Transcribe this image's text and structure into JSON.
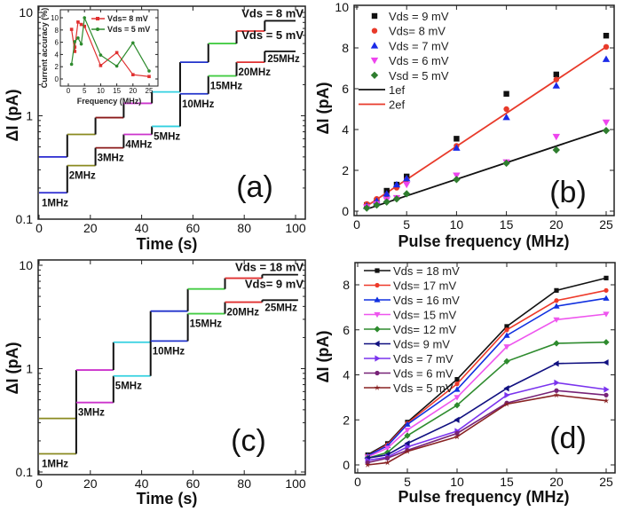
{
  "chart_data": [
    {
      "id": "a",
      "type": "line",
      "panel_label": "(a)",
      "xlabel": "Time (s)",
      "ylabel": "ΔI (pA)",
      "xlim": [
        0,
        100
      ],
      "ylim": [
        0.1,
        10
      ],
      "yscale": "log",
      "xticks": [
        "0",
        "20",
        "40",
        "60",
        "80",
        "100"
      ],
      "yticks": [
        "0.1",
        "1",
        "10"
      ],
      "segment_times": [
        0,
        11,
        22,
        33,
        44,
        55,
        66,
        77,
        88,
        100
      ],
      "step_labels": [
        "1MHz",
        "2MHz",
        "3MHz",
        "4MHz",
        "5MHz",
        "10MHz",
        "15MHz",
        "20MHz",
        "25MHz"
      ],
      "step_colors": [
        "#2a2ad0",
        "#8a8a20",
        "#8b1a1a",
        "#cc33cc",
        "#33d0e0",
        "#2233cc",
        "#44cc44",
        "#e03030",
        "#111111"
      ],
      "series": [
        {
          "name": "Vds = 8 mV",
          "values": [
            0.4,
            0.66,
            0.96,
            1.32,
            1.7,
            3.3,
            5.0,
            6.6,
            8.3
          ]
        },
        {
          "name": "Vds = 5 mV",
          "values": [
            0.18,
            0.33,
            0.49,
            0.66,
            0.79,
            1.63,
            2.43,
            3.3,
            4.2
          ]
        }
      ],
      "inset": {
        "type": "line",
        "xlabel": "Frequency (MHz)",
        "ylabel": "Current accuracy (%)",
        "xlim": [
          0,
          25
        ],
        "ylim": [
          0,
          10
        ],
        "xticks": [
          "0",
          "5",
          "10",
          "15",
          "20",
          "25"
        ],
        "yticks": [
          "0",
          "2",
          "4",
          "6",
          "8",
          "10"
        ],
        "series": [
          {
            "name": "Vds= 8 mV",
            "color": "#e03030",
            "x": [
              1,
              2,
              2,
              3,
              4,
              5,
              10,
              15,
              20,
              25
            ],
            "values": [
              8.1,
              4.5,
              5.2,
              9.3,
              8.9,
              8.6,
              2.2,
              4.3,
              0.7,
              0.4
            ]
          },
          {
            "name": "Vds = 5 mV",
            "color": "#2e8b2e",
            "x": [
              1,
              2,
              3,
              4,
              5,
              10,
              15,
              20,
              25
            ],
            "values": [
              2.4,
              6.1,
              6.7,
              5.7,
              10.0,
              3.9,
              2.1,
              5.9,
              1.3
            ]
          }
        ]
      }
    },
    {
      "id": "b",
      "type": "scatter",
      "panel_label": "(b)",
      "xlabel": "Pulse frequency (MHz)",
      "ylabel": "ΔI (pA)",
      "xlim": [
        0,
        25
      ],
      "ylim": [
        0,
        10
      ],
      "xticks": [
        "0",
        "5",
        "10",
        "15",
        "20",
        "25"
      ],
      "yticks": [
        "0",
        "2",
        "4",
        "6",
        "8",
        "10"
      ],
      "legend": "top-left",
      "x": [
        1,
        2,
        3,
        4,
        5,
        10,
        15,
        20,
        25
      ],
      "series": [
        {
          "name": "Vds = 9 mV",
          "color": "#111111",
          "marker": "square",
          "values": [
            0.3,
            0.5,
            1.0,
            1.3,
            1.7,
            3.55,
            5.75,
            6.7,
            8.6
          ]
        },
        {
          "name": "Vds= 8 mV",
          "color": "#e83a2a",
          "marker": "circle",
          "values": [
            0.35,
            0.6,
            0.8,
            1.15,
            1.55,
            3.2,
            5.0,
            6.45,
            8.05
          ]
        },
        {
          "name": "Vds = 7 mV",
          "color": "#1a2ae8",
          "marker": "triangle-up",
          "values": [
            0.25,
            0.5,
            0.85,
            1.3,
            1.6,
            3.1,
            4.6,
            6.15,
            7.45
          ]
        },
        {
          "name": "Vds = 6 mV",
          "color": "#ee44ee",
          "marker": "triangle-down",
          "values": [
            0.2,
            0.35,
            0.55,
            0.65,
            1.3,
            1.75,
            2.4,
            3.65,
            4.35
          ]
        },
        {
          "name": "Vsd = 5 mV",
          "color": "#2e7d2e",
          "marker": "diamond",
          "values": [
            0.15,
            0.3,
            0.45,
            0.6,
            0.85,
            1.55,
            2.35,
            3.0,
            3.95
          ]
        }
      ],
      "fits": [
        {
          "name": "1ef",
          "color": "#111111",
          "x": [
            1,
            25
          ],
          "values": [
            0.1,
            4.0
          ]
        },
        {
          "name": "2ef",
          "color": "#e83a2a",
          "x": [
            1,
            25
          ],
          "values": [
            0.25,
            8.05
          ]
        }
      ]
    },
    {
      "id": "c",
      "type": "line",
      "panel_label": "(c)",
      "xlabel": "Time (s)",
      "ylabel": "ΔI (pA)",
      "xlim": [
        0,
        100
      ],
      "ylim": [
        0.1,
        10
      ],
      "yscale": "log",
      "xticks": [
        "0",
        "20",
        "40",
        "60",
        "80",
        "100"
      ],
      "yticks": [
        "0.1",
        "1",
        "10"
      ],
      "segment_times": [
        0,
        14.5,
        29,
        43.5,
        58,
        72.5,
        87,
        101
      ],
      "step_labels": [
        "1MHz",
        "3MHz",
        "5MHz",
        "10MHz",
        "15MHz",
        "20MHz",
        "25MHz"
      ],
      "step_colors": [
        "#8a8a20",
        "#cc33cc",
        "#33d0e0",
        "#2233cc",
        "#44cc44",
        "#e03030",
        "#111111"
      ],
      "series": [
        {
          "name": "Vds = 18 mV",
          "values": [
            0.33,
            0.97,
            1.8,
            3.6,
            5.9,
            7.5,
            8.1
          ]
        },
        {
          "name": "Vds= 9 mV",
          "values": [
            0.15,
            0.47,
            0.85,
            1.85,
            3.4,
            4.4,
            4.6
          ]
        }
      ]
    },
    {
      "id": "d",
      "type": "line",
      "panel_label": "(d)",
      "xlabel": "Pulse frequency (MHz)",
      "ylabel": "ΔI (pA)",
      "xlim": [
        0,
        25
      ],
      "ylim": [
        0,
        8
      ],
      "xticks": [
        "0",
        "5",
        "10",
        "15",
        "20",
        "25"
      ],
      "yticks": [
        "0",
        "2",
        "4",
        "6",
        "8"
      ],
      "legend": "top-left",
      "x": [
        1,
        3,
        5,
        10,
        15,
        20,
        25
      ],
      "series": [
        {
          "name": "Vds = 18 mV",
          "color": "#111111",
          "marker": "square",
          "values": [
            0.45,
            0.95,
            1.9,
            3.8,
            6.15,
            7.75,
            8.3
          ]
        },
        {
          "name": "Vds= 17 mV",
          "color": "#ee3a2a",
          "marker": "circle",
          "values": [
            0.4,
            0.9,
            1.85,
            3.6,
            6.0,
            7.3,
            7.75
          ]
        },
        {
          "name": "Vds = 16 mV",
          "color": "#1030e0",
          "marker": "triangle-up",
          "values": [
            0.4,
            0.85,
            1.8,
            3.35,
            5.75,
            7.05,
            7.4
          ]
        },
        {
          "name": "Vds= 15 mV",
          "color": "#ee55ee",
          "marker": "triangle-down",
          "values": [
            0.35,
            0.75,
            1.55,
            3.0,
            5.25,
            6.45,
            6.7
          ]
        },
        {
          "name": "Vds= 12 mV",
          "color": "#2e8b2e",
          "marker": "diamond",
          "values": [
            0.3,
            0.55,
            1.3,
            2.65,
            4.6,
            5.4,
            5.45
          ]
        },
        {
          "name": "Vds= 9 mV",
          "color": "#101080",
          "marker": "triangle-left",
          "values": [
            0.3,
            0.45,
            0.95,
            2.0,
            3.4,
            4.5,
            4.55
          ]
        },
        {
          "name": "Vds = 7 mV",
          "color": "#7a33ee",
          "marker": "triangle-right",
          "values": [
            0.2,
            0.35,
            0.8,
            1.5,
            3.1,
            3.65,
            3.35
          ]
        },
        {
          "name": "Vds = 6 mV",
          "color": "#772277",
          "marker": "hexagon",
          "values": [
            0.1,
            0.3,
            0.65,
            1.4,
            2.75,
            3.3,
            3.1
          ]
        },
        {
          "name": "Vds = 5 mV",
          "color": "#882222",
          "marker": "star",
          "values": [
            0.0,
            0.1,
            0.6,
            1.25,
            2.7,
            3.1,
            2.85
          ]
        }
      ]
    }
  ]
}
